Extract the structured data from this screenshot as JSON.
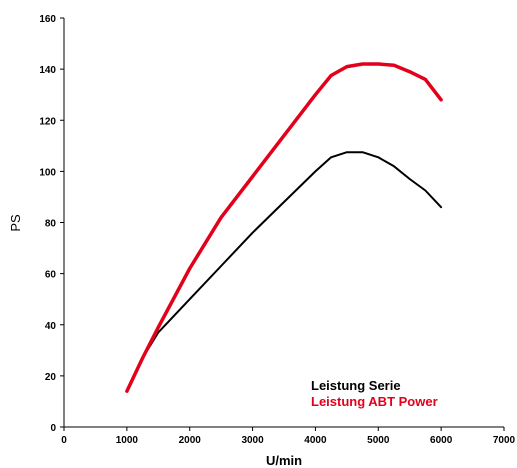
{
  "chart_data": {
    "type": "line",
    "xlabel": "U/min",
    "ylabel": "PS",
    "xlim": [
      0,
      7000
    ],
    "ylim": [
      0,
      160
    ],
    "x_ticks": [
      "0",
      "1000",
      "2000",
      "3000",
      "4000",
      "5000",
      "6000",
      "7000"
    ],
    "y_ticks": [
      "0",
      "20",
      "40",
      "60",
      "80",
      "100",
      "120",
      "140",
      "160"
    ],
    "grid": false,
    "legend_position": "bottom-right",
    "series": [
      {
        "name": "Leistung Serie",
        "color": "#000000",
        "x": [
          1000,
          1250,
          1500,
          2000,
          2500,
          3000,
          3500,
          4000,
          4250,
          4500,
          4750,
          5000,
          5250,
          5500,
          5750,
          6000
        ],
        "y": [
          14,
          27,
          37,
          50,
          63,
          76,
          88,
          100,
          105.5,
          107.5,
          107.5,
          105.5,
          102,
          97,
          92.5,
          86
        ]
      },
      {
        "name": "Leistung ABT Power",
        "color": "#e3001b",
        "x": [
          1000,
          1250,
          1500,
          2000,
          2500,
          3000,
          3500,
          4000,
          4250,
          4500,
          4750,
          5000,
          5250,
          5500,
          5750,
          6000
        ],
        "y": [
          14,
          27,
          39,
          62,
          82,
          98,
          114,
          130,
          137.5,
          141,
          142,
          142,
          141.5,
          139,
          136,
          128
        ]
      }
    ]
  }
}
